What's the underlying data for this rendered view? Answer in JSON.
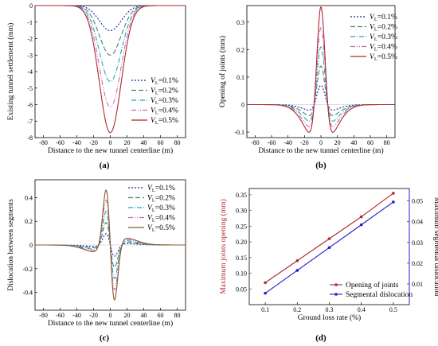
{
  "chart_data": [
    {
      "panel": "(a)",
      "type": "line",
      "xlabel": "Distance to the new tunnel centerline (m)",
      "ylabel": "Existing tunnel settlement (mm)",
      "xlim": [
        -90,
        90
      ],
      "ylim": [
        -8,
        0
      ],
      "xticks": [
        -80,
        -60,
        -40,
        -20,
        0,
        20,
        40,
        60,
        80
      ],
      "yticks": [
        0,
        -1,
        -2,
        -3,
        -4,
        -5,
        -6,
        -7,
        -8
      ],
      "legend_position": "lower-right",
      "series": [
        {
          "name_prefix": "V",
          "name_sub": "L",
          "name_suffix": "=0.1%",
          "color": "#1f1fa8",
          "dash": "2,2",
          "peak": -1.52,
          "width": 13
        },
        {
          "name_prefix": "V",
          "name_sub": "L",
          "name_suffix": "=0.2%",
          "color": "#3c8a6e",
          "dash": "6,3",
          "peak": -3.0,
          "width": 13
        },
        {
          "name_prefix": "V",
          "name_sub": "L",
          "name_suffix": "=0.3%",
          "color": "#2aa1b8",
          "dash": "6,2,1,2",
          "peak": -4.6,
          "width": 13
        },
        {
          "name_prefix": "V",
          "name_sub": "L",
          "name_suffix": "=0.4%",
          "color": "#c46bb0",
          "dash": "6,2,1,2,1,2",
          "peak": -6.15,
          "width": 13
        },
        {
          "name_prefix": "V",
          "name_sub": "L",
          "name_suffix": "=0.5%",
          "color": "#b0282b",
          "dash": "",
          "peak": -7.7,
          "width": 13
        }
      ]
    },
    {
      "panel": "(b)",
      "type": "line",
      "xlabel": "Distance to the new tunnel centerline (m)",
      "ylabel": "Opening of joints (mm)",
      "xlim": [
        -90,
        90
      ],
      "ylim": [
        -0.12,
        0.36
      ],
      "xticks": [
        -80,
        -60,
        -40,
        -20,
        0,
        20,
        40,
        60,
        80
      ],
      "yticks": [
        -0.1,
        0.0,
        0.1,
        0.2,
        0.3
      ],
      "legend_position": "upper-right",
      "series": [
        {
          "name_prefix": "V",
          "name_sub": "L",
          "name_suffix": "=0.1%",
          "color": "#1f1fa8",
          "dash": "2,2",
          "peak": 0.07,
          "trough": -0.02
        },
        {
          "name_prefix": "V",
          "name_sub": "L",
          "name_suffix": "=0.2%",
          "color": "#3c8a6e",
          "dash": "6,3",
          "peak": 0.14,
          "trough": -0.04
        },
        {
          "name_prefix": "V",
          "name_sub": "L",
          "name_suffix": "=0.3%",
          "color": "#2aa1b8",
          "dash": "6,2,1,2",
          "peak": 0.21,
          "trough": -0.06
        },
        {
          "name_prefix": "V",
          "name_sub": "L",
          "name_suffix": "=0.4%",
          "color": "#c46bb0",
          "dash": "6,2,1,2,1,2",
          "peak": 0.28,
          "trough": -0.08
        },
        {
          "name_prefix": "V",
          "name_sub": "L",
          "name_suffix": "=0.5%",
          "color": "#b0282b",
          "dash": "",
          "peak": 0.355,
          "trough": -0.1
        }
      ]
    },
    {
      "panel": "(c)",
      "type": "line",
      "xlabel": "Distance to the new tunnel centerline (m)",
      "ylabel": "Dislocation between segments",
      "xlim": [
        -90,
        90
      ],
      "ylim": [
        -0.55,
        0.55
      ],
      "xticks": [
        -80,
        -60,
        -40,
        -20,
        0,
        20,
        40,
        60,
        80
      ],
      "yticks": [
        0.4,
        0.2,
        0.0,
        -0.2,
        -0.4
      ],
      "legend_position": "upper-right",
      "series": [
        {
          "name_prefix": "V",
          "name_sub": "L",
          "name_suffix": "=0.1%",
          "color": "#1f1fa8",
          "dash": "2,2",
          "peak": 0.1
        },
        {
          "name_prefix": "V",
          "name_sub": "L",
          "name_suffix": "=0.2%",
          "color": "#3c8a6e",
          "dash": "6,3",
          "peak": 0.2
        },
        {
          "name_prefix": "V",
          "name_sub": "L",
          "name_suffix": "=0.3%",
          "color": "#2aa1b8",
          "dash": "6,2,1,2",
          "peak": 0.3
        },
        {
          "name_prefix": "V",
          "name_sub": "L",
          "name_suffix": "=0.4%",
          "color": "#c46bb0",
          "dash": "6,2,1,2,1,2",
          "peak": 0.4
        },
        {
          "name_prefix": "V",
          "name_sub": "L",
          "name_suffix": "=0.5%",
          "color": "#8a5a2b",
          "dash": "",
          "peak": 0.49
        }
      ]
    },
    {
      "panel": "(d)",
      "type": "line",
      "xlabel": "Ground loss rate (%)",
      "ylabel": "Maximum joints  opening (mm)",
      "y2label": "Maximum segmental dislocation",
      "xlim": [
        0.05,
        0.55
      ],
      "ylim": [
        0.0,
        0.37
      ],
      "y2lim": [
        0.0,
        0.056
      ],
      "xticks": [
        0.1,
        0.2,
        0.3,
        0.4,
        0.5
      ],
      "yticks": [
        0.05,
        0.1,
        0.15,
        0.2,
        0.25,
        0.3,
        0.35
      ],
      "y2ticks": [
        0.01,
        0.02,
        0.03,
        0.04,
        0.05
      ],
      "legend_position": "lower-right",
      "series": [
        {
          "name": "Opening of joints",
          "axis": "left",
          "color": "#b0282b",
          "x": [
            0.1,
            0.2,
            0.3,
            0.4,
            0.5
          ],
          "y": [
            0.07,
            0.14,
            0.21,
            0.28,
            0.355
          ]
        },
        {
          "name": "Segmental dislocation",
          "axis": "right",
          "color": "#1f1fc8",
          "x": [
            0.1,
            0.2,
            0.3,
            0.4,
            0.5
          ],
          "y": [
            0.0055,
            0.0165,
            0.0275,
            0.0385,
            0.0495
          ]
        }
      ]
    }
  ],
  "panel_labels": [
    "(a)",
    "(b)",
    "(c)",
    "(d)"
  ]
}
